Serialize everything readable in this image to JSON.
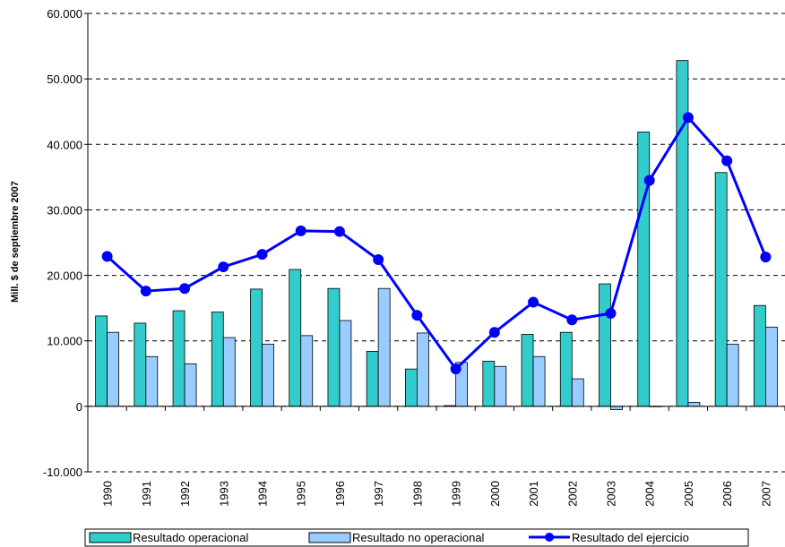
{
  "chart_data": {
    "type": "bar-line",
    "y_label": "Mill. $ de septiembre 2007",
    "categories": [
      "1990",
      "1991",
      "1992",
      "1993",
      "1994",
      "1995",
      "1996",
      "1997",
      "1998",
      "1999",
      "2000",
      "2001",
      "2002",
      "2003",
      "2004",
      "2005",
      "2006",
      "2007"
    ],
    "series": [
      {
        "name": "Resultado operacional",
        "type": "bar",
        "color": "#33cccc",
        "values": [
          13800,
          12700,
          14600,
          14400,
          17900,
          20900,
          18000,
          8400,
          5700,
          100,
          6900,
          11000,
          11300,
          18700,
          41900,
          52800,
          35700,
          15400
        ]
      },
      {
        "name": "Resultado no operacional",
        "type": "bar",
        "color": "#99ccff",
        "values": [
          11300,
          7600,
          6500,
          10500,
          9500,
          10800,
          13100,
          18000,
          11200,
          6700,
          6100,
          7600,
          4200,
          -500,
          0,
          600,
          9500,
          12100
        ]
      },
      {
        "name": "Resultado del ejercicio",
        "type": "line",
        "color": "#0000ff",
        "values": [
          22900,
          17600,
          18000,
          21300,
          23200,
          26800,
          26700,
          22400,
          13900,
          5700,
          11300,
          15900,
          13200,
          14200,
          34500,
          44100,
          37500,
          22800
        ]
      }
    ],
    "ylim": [
      -10000,
      60000
    ],
    "yticks": [
      {
        "value": -10000,
        "label": "-10.000"
      },
      0,
      {
        "value": 10000,
        "label": "10.000"
      },
      {
        "value": 20000,
        "label": "20.000"
      },
      {
        "value": 30000,
        "label": "30.000"
      },
      {
        "value": 40000,
        "label": "40.000"
      },
      {
        "value": 50000,
        "label": "50.000"
      },
      {
        "value": 60000,
        "label": "60.000"
      }
    ],
    "grid": true,
    "legend": "bottom"
  }
}
